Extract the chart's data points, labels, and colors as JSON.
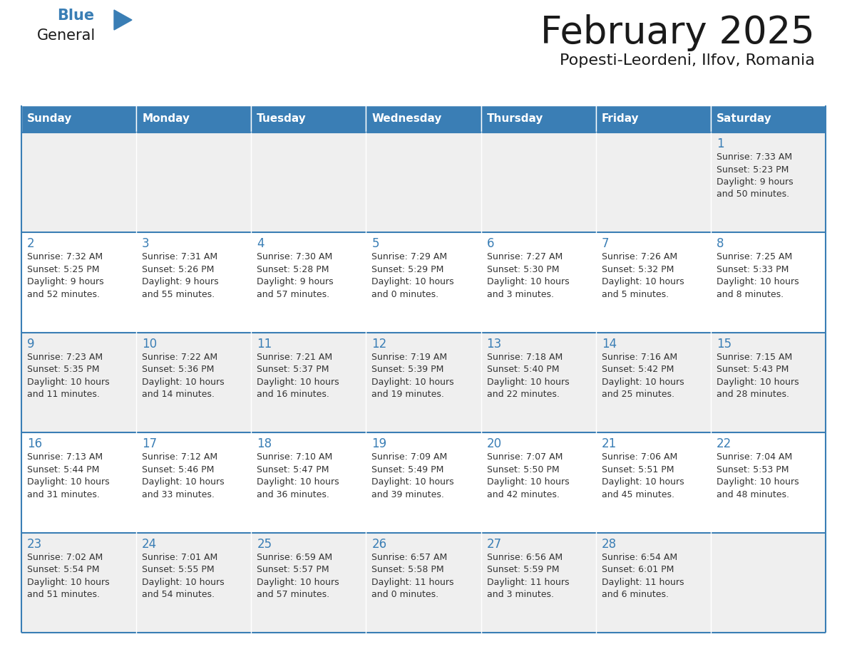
{
  "title": "February 2025",
  "subtitle": "Popesti-Leordeni, Ilfov, Romania",
  "header_color": "#3A7EB5",
  "header_text_color": "#FFFFFF",
  "header_days": [
    "Sunday",
    "Monday",
    "Tuesday",
    "Wednesday",
    "Thursday",
    "Friday",
    "Saturday"
  ],
  "alt_row_color": "#EFEFEF",
  "white_color": "#FFFFFF",
  "border_color": "#3A7EB5",
  "day_number_color": "#3A7EB5",
  "cell_text_color": "#333333",
  "title_color": "#1A1A1A",
  "subtitle_color": "#1A1A1A",
  "logo_general_color": "#1A1A1A",
  "logo_blue_color": "#3A7EB5",
  "calendar_data": [
    [
      {
        "day": null,
        "sunrise": null,
        "sunset": null,
        "daylight": null
      },
      {
        "day": null,
        "sunrise": null,
        "sunset": null,
        "daylight": null
      },
      {
        "day": null,
        "sunrise": null,
        "sunset": null,
        "daylight": null
      },
      {
        "day": null,
        "sunrise": null,
        "sunset": null,
        "daylight": null
      },
      {
        "day": null,
        "sunrise": null,
        "sunset": null,
        "daylight": null
      },
      {
        "day": null,
        "sunrise": null,
        "sunset": null,
        "daylight": null
      },
      {
        "day": 1,
        "sunrise": "7:33 AM",
        "sunset": "5:23 PM",
        "daylight": "9 hours",
        "daylight2": "and 50 minutes."
      }
    ],
    [
      {
        "day": 2,
        "sunrise": "7:32 AM",
        "sunset": "5:25 PM",
        "daylight": "9 hours",
        "daylight2": "and 52 minutes."
      },
      {
        "day": 3,
        "sunrise": "7:31 AM",
        "sunset": "5:26 PM",
        "daylight": "9 hours",
        "daylight2": "and 55 minutes."
      },
      {
        "day": 4,
        "sunrise": "7:30 AM",
        "sunset": "5:28 PM",
        "daylight": "9 hours",
        "daylight2": "and 57 minutes."
      },
      {
        "day": 5,
        "sunrise": "7:29 AM",
        "sunset": "5:29 PM",
        "daylight": "10 hours",
        "daylight2": "and 0 minutes."
      },
      {
        "day": 6,
        "sunrise": "7:27 AM",
        "sunset": "5:30 PM",
        "daylight": "10 hours",
        "daylight2": "and 3 minutes."
      },
      {
        "day": 7,
        "sunrise": "7:26 AM",
        "sunset": "5:32 PM",
        "daylight": "10 hours",
        "daylight2": "and 5 minutes."
      },
      {
        "day": 8,
        "sunrise": "7:25 AM",
        "sunset": "5:33 PM",
        "daylight": "10 hours",
        "daylight2": "and 8 minutes."
      }
    ],
    [
      {
        "day": 9,
        "sunrise": "7:23 AM",
        "sunset": "5:35 PM",
        "daylight": "10 hours",
        "daylight2": "and 11 minutes."
      },
      {
        "day": 10,
        "sunrise": "7:22 AM",
        "sunset": "5:36 PM",
        "daylight": "10 hours",
        "daylight2": "and 14 minutes."
      },
      {
        "day": 11,
        "sunrise": "7:21 AM",
        "sunset": "5:37 PM",
        "daylight": "10 hours",
        "daylight2": "and 16 minutes."
      },
      {
        "day": 12,
        "sunrise": "7:19 AM",
        "sunset": "5:39 PM",
        "daylight": "10 hours",
        "daylight2": "and 19 minutes."
      },
      {
        "day": 13,
        "sunrise": "7:18 AM",
        "sunset": "5:40 PM",
        "daylight": "10 hours",
        "daylight2": "and 22 minutes."
      },
      {
        "day": 14,
        "sunrise": "7:16 AM",
        "sunset": "5:42 PM",
        "daylight": "10 hours",
        "daylight2": "and 25 minutes."
      },
      {
        "day": 15,
        "sunrise": "7:15 AM",
        "sunset": "5:43 PM",
        "daylight": "10 hours",
        "daylight2": "and 28 minutes."
      }
    ],
    [
      {
        "day": 16,
        "sunrise": "7:13 AM",
        "sunset": "5:44 PM",
        "daylight": "10 hours",
        "daylight2": "and 31 minutes."
      },
      {
        "day": 17,
        "sunrise": "7:12 AM",
        "sunset": "5:46 PM",
        "daylight": "10 hours",
        "daylight2": "and 33 minutes."
      },
      {
        "day": 18,
        "sunrise": "7:10 AM",
        "sunset": "5:47 PM",
        "daylight": "10 hours",
        "daylight2": "and 36 minutes."
      },
      {
        "day": 19,
        "sunrise": "7:09 AM",
        "sunset": "5:49 PM",
        "daylight": "10 hours",
        "daylight2": "and 39 minutes."
      },
      {
        "day": 20,
        "sunrise": "7:07 AM",
        "sunset": "5:50 PM",
        "daylight": "10 hours",
        "daylight2": "and 42 minutes."
      },
      {
        "day": 21,
        "sunrise": "7:06 AM",
        "sunset": "5:51 PM",
        "daylight": "10 hours",
        "daylight2": "and 45 minutes."
      },
      {
        "day": 22,
        "sunrise": "7:04 AM",
        "sunset": "5:53 PM",
        "daylight": "10 hours",
        "daylight2": "and 48 minutes."
      }
    ],
    [
      {
        "day": 23,
        "sunrise": "7:02 AM",
        "sunset": "5:54 PM",
        "daylight": "10 hours",
        "daylight2": "and 51 minutes."
      },
      {
        "day": 24,
        "sunrise": "7:01 AM",
        "sunset": "5:55 PM",
        "daylight": "10 hours",
        "daylight2": "and 54 minutes."
      },
      {
        "day": 25,
        "sunrise": "6:59 AM",
        "sunset": "5:57 PM",
        "daylight": "10 hours",
        "daylight2": "and 57 minutes."
      },
      {
        "day": 26,
        "sunrise": "6:57 AM",
        "sunset": "5:58 PM",
        "daylight": "11 hours",
        "daylight2": "and 0 minutes."
      },
      {
        "day": 27,
        "sunrise": "6:56 AM",
        "sunset": "5:59 PM",
        "daylight": "11 hours",
        "daylight2": "and 3 minutes."
      },
      {
        "day": 28,
        "sunrise": "6:54 AM",
        "sunset": "6:01 PM",
        "daylight": "11 hours",
        "daylight2": "and 6 minutes."
      },
      {
        "day": null,
        "sunrise": null,
        "sunset": null,
        "daylight": null,
        "daylight2": null
      }
    ]
  ]
}
